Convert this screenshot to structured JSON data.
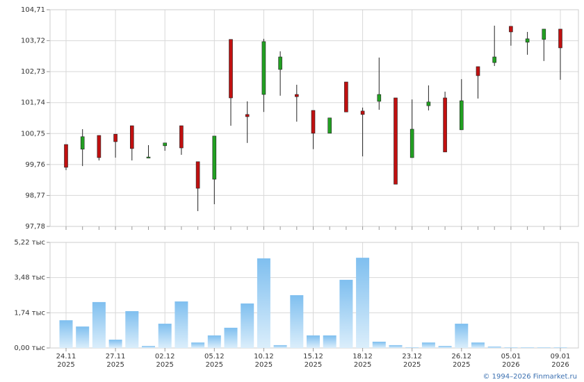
{
  "chart_data": [
    {
      "type": "candlestick",
      "open": [
        100.4,
        100.25,
        100.69,
        100.73,
        101.0,
        100.0,
        100.36,
        101.0,
        99.85,
        99.29,
        103.76,
        101.36,
        102.0,
        102.8,
        102.0,
        101.49,
        100.76,
        102.4,
        101.47,
        101.78,
        101.89,
        99.98,
        101.64,
        101.89,
        100.87,
        102.89,
        103.02,
        104.18,
        103.67,
        103.76,
        104.09
      ],
      "high": [
        100.4,
        100.89,
        100.69,
        100.73,
        101.0,
        100.38,
        100.45,
        101.0,
        99.85,
        100.67,
        103.76,
        101.78,
        103.78,
        103.38,
        102.31,
        101.49,
        101.25,
        102.4,
        101.58,
        103.18,
        101.89,
        101.84,
        102.29,
        102.09,
        102.49,
        102.89,
        104.2,
        104.18,
        104.0,
        104.09,
        104.09
      ],
      "low": [
        99.58,
        99.71,
        99.89,
        99.98,
        99.89,
        100.0,
        100.2,
        100.07,
        98.27,
        98.49,
        101.0,
        100.45,
        101.44,
        101.96,
        101.13,
        100.25,
        100.76,
        101.44,
        100.02,
        101.51,
        99.13,
        99.98,
        101.49,
        100.16,
        100.87,
        101.87,
        102.91,
        103.56,
        103.27,
        103.07,
        102.47
      ],
      "close": [
        99.67,
        100.65,
        99.98,
        100.49,
        100.27,
        100.0,
        100.45,
        100.29,
        99.0,
        100.67,
        101.89,
        101.29,
        103.69,
        103.2,
        101.93,
        100.76,
        101.25,
        101.44,
        101.36,
        102.0,
        99.13,
        100.89,
        101.76,
        100.16,
        101.8,
        102.6,
        103.2,
        104.0,
        103.78,
        104.09,
        103.49
      ],
      "up_color": "#22a022",
      "down_color": "#c01010",
      "ylim": [
        97.78,
        104.71
      ],
      "yticks": [
        {
          "value": 97.78,
          "label": "97,78"
        },
        {
          "value": 98.77,
          "label": "98,77"
        },
        {
          "value": 99.76,
          "label": "99,76"
        },
        {
          "value": 100.75,
          "label": "100,75"
        },
        {
          "value": 101.74,
          "label": "101,74"
        },
        {
          "value": 102.73,
          "label": "102,73"
        },
        {
          "value": 103.72,
          "label": "103,72"
        },
        {
          "value": 104.71,
          "label": "104,71"
        }
      ],
      "grid": true
    },
    {
      "type": "bar",
      "categories": [
        "24.11 2025",
        null,
        null,
        "27.11 2025",
        null,
        null,
        "02.12 2025",
        null,
        null,
        "05.12 2025",
        null,
        null,
        "10.12 2025",
        null,
        null,
        "15.12 2025",
        null,
        null,
        "18.12 2025",
        null,
        null,
        "23.12 2025",
        null,
        null,
        "26.12 2025",
        null,
        null,
        "05.01 2026",
        null,
        null,
        "09.01 2026"
      ],
      "values": [
        1.37,
        1.06,
        2.27,
        0.41,
        1.82,
        0.1,
        1.2,
        2.3,
        0.27,
        0.62,
        1.0,
        2.2,
        4.43,
        0.14,
        2.61,
        0.62,
        0.62,
        3.37,
        4.46,
        0.31,
        0.14,
        0.03,
        0.27,
        0.1,
        1.2,
        0.27,
        0.07,
        0.03,
        0.03,
        0.03,
        0.03
      ],
      "color": "#7fbfef",
      "ylim": [
        0,
        5.22
      ],
      "yticks": [
        {
          "value": 0,
          "label": "0,00 тыс"
        },
        {
          "value": 1.74,
          "label": "1,74 тыс"
        },
        {
          "value": 3.48,
          "label": "3,48 тыс"
        },
        {
          "value": 5.22,
          "label": "5,22 тыс"
        }
      ],
      "grid": true,
      "credit": "© 1994–2026 Finmarket.ru"
    }
  ]
}
